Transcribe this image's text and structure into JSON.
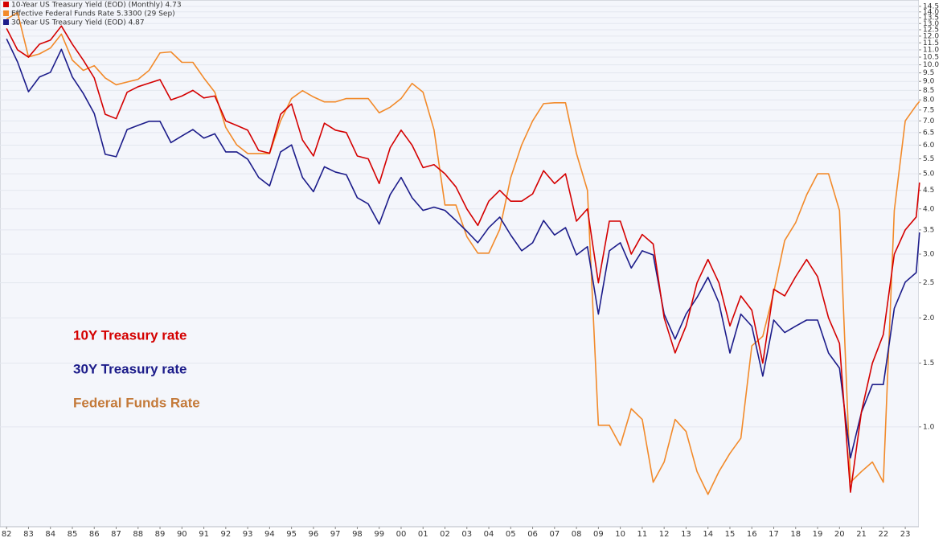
{
  "chart_data": {
    "type": "line",
    "log_scale": true,
    "grid": true,
    "legend": "top-left",
    "annotations": [
      "10Y Treasury rate",
      "30Y Treasury rate",
      "Federal Funds Rate"
    ],
    "x": [
      1982.0,
      1982.5,
      1983.0,
      1983.5,
      1984.0,
      1984.5,
      1985.0,
      1985.5,
      1986.0,
      1986.5,
      1987.0,
      1987.5,
      1988.0,
      1988.5,
      1989.0,
      1989.5,
      1990.0,
      1990.5,
      1991.0,
      1991.5,
      1992.0,
      1992.5,
      1993.0,
      1993.5,
      1994.0,
      1994.5,
      1995.0,
      1995.5,
      1996.0,
      1996.5,
      1997.0,
      1997.5,
      1998.0,
      1998.5,
      1999.0,
      1999.5,
      2000.0,
      2000.5,
      2001.0,
      2001.5,
      2002.0,
      2002.5,
      2003.0,
      2003.5,
      2004.0,
      2004.5,
      2005.0,
      2005.5,
      2006.0,
      2006.5,
      2007.0,
      2007.5,
      2008.0,
      2008.5,
      2009.0,
      2009.5,
      2010.0,
      2010.5,
      2011.0,
      2011.5,
      2012.0,
      2012.5,
      2013.0,
      2013.5,
      2014.0,
      2014.5,
      2015.0,
      2015.5,
      2016.0,
      2016.5,
      2017.0,
      2017.5,
      2018.0,
      2018.5,
      2019.0,
      2019.5,
      2020.0,
      2020.5,
      2021.0,
      2021.5,
      2022.0,
      2022.5,
      2023.0,
      2023.5,
      2023.65
    ],
    "series": [
      {
        "name": "10-Year US Treasury Yield (EOD) (Monthly) 4.73",
        "color": "#d40000",
        "values": [
          12.6,
          11.0,
          10.5,
          11.4,
          11.7,
          12.8,
          11.4,
          10.3,
          9.2,
          7.3,
          7.1,
          8.4,
          8.7,
          8.9,
          9.1,
          8.0,
          8.2,
          8.5,
          8.1,
          8.2,
          7.0,
          6.8,
          6.6,
          5.8,
          5.7,
          7.3,
          7.8,
          6.2,
          5.6,
          6.9,
          6.6,
          6.5,
          5.6,
          5.5,
          4.7,
          5.9,
          6.6,
          6.0,
          5.2,
          5.3,
          5.0,
          4.6,
          4.0,
          3.6,
          4.2,
          4.5,
          4.2,
          4.2,
          4.4,
          5.1,
          4.7,
          5.0,
          3.7,
          4.0,
          2.5,
          3.7,
          3.7,
          3.0,
          3.4,
          3.2,
          2.0,
          1.6,
          1.9,
          2.5,
          2.9,
          2.5,
          1.9,
          2.3,
          2.1,
          1.5,
          2.4,
          2.3,
          2.6,
          2.9,
          2.6,
          2.0,
          1.7,
          0.66,
          1.1,
          1.5,
          1.8,
          3.0,
          3.5,
          3.8,
          4.73
        ]
      },
      {
        "name": "Effective Federal Funds Rate 5.3300 (29 Sep)",
        "color": "#f28a2a",
        "axis": "y2",
        "values": [
          13.2,
          14.2,
          8.7,
          9.0,
          9.6,
          11.2,
          8.4,
          7.5,
          7.9,
          6.9,
          6.4,
          6.6,
          6.8,
          7.5,
          9.1,
          9.2,
          8.2,
          8.2,
          6.9,
          5.9,
          4.0,
          3.3,
          3.0,
          3.0,
          3.0,
          4.3,
          5.5,
          6.0,
          5.6,
          5.3,
          5.3,
          5.5,
          5.5,
          5.5,
          4.7,
          5.0,
          5.5,
          6.5,
          5.9,
          3.9,
          1.7,
          1.7,
          1.2,
          1.0,
          1.0,
          1.3,
          2.3,
          3.3,
          4.3,
          5.2,
          5.25,
          5.25,
          3.0,
          2.0,
          0.15,
          0.15,
          0.12,
          0.18,
          0.16,
          0.08,
          0.1,
          0.16,
          0.14,
          0.09,
          0.07,
          0.09,
          0.11,
          0.13,
          0.36,
          0.4,
          0.65,
          1.15,
          1.4,
          1.9,
          2.4,
          2.4,
          1.6,
          0.08,
          0.09,
          0.1,
          0.08,
          1.6,
          4.3,
          5.1,
          5.33
        ]
      },
      {
        "name": "30-Year US Treasury Yield (EOD) 4.87",
        "color": "#1c1c8a",
        "axis": "y3",
        "values": [
          14.2,
          12.5,
          10.6,
          11.5,
          11.8,
          13.4,
          11.5,
          10.5,
          9.4,
          7.5,
          7.4,
          8.6,
          8.8,
          9.0,
          9.0,
          8.0,
          8.3,
          8.6,
          8.2,
          8.4,
          7.6,
          7.6,
          7.3,
          6.6,
          6.3,
          7.6,
          7.9,
          6.6,
          6.1,
          7.0,
          6.8,
          6.7,
          5.9,
          5.7,
          5.1,
          6.0,
          6.6,
          5.9,
          5.5,
          5.6,
          5.5,
          5.2,
          4.9,
          4.6,
          5.0,
          5.3,
          4.8,
          4.4,
          4.6,
          5.2,
          4.8,
          5.0,
          4.3,
          4.5,
          3.1,
          4.4,
          4.6,
          4.0,
          4.4,
          4.3,
          3.1,
          2.7,
          3.1,
          3.4,
          3.8,
          3.3,
          2.5,
          3.1,
          2.9,
          2.2,
          3.0,
          2.8,
          2.9,
          3.0,
          3.0,
          2.5,
          2.3,
          1.4,
          1.8,
          2.1,
          2.1,
          3.2,
          3.7,
          3.9,
          4.87
        ]
      }
    ],
    "xlim": [
      1981.7,
      2023.62
    ],
    "xticks": [
      {
        "value": 1982,
        "label": "82"
      },
      {
        "value": 1983,
        "label": "83"
      },
      {
        "value": 1984,
        "label": "84"
      },
      {
        "value": 1985,
        "label": "85"
      },
      {
        "value": 1986,
        "label": "86"
      },
      {
        "value": 1987,
        "label": "87"
      },
      {
        "value": 1988,
        "label": "88"
      },
      {
        "value": 1989,
        "label": "89"
      },
      {
        "value": 1990,
        "label": "90"
      },
      {
        "value": 1991,
        "label": "91"
      },
      {
        "value": 1992,
        "label": "92"
      },
      {
        "value": 1993,
        "label": "93"
      },
      {
        "value": 1994,
        "label": "94"
      },
      {
        "value": 1995,
        "label": "95"
      },
      {
        "value": 1996,
        "label": "96"
      },
      {
        "value": 1997,
        "label": "97"
      },
      {
        "value": 1998,
        "label": "98"
      },
      {
        "value": 1999,
        "label": "99"
      },
      {
        "value": 2000,
        "label": "00"
      },
      {
        "value": 2001,
        "label": "01"
      },
      {
        "value": 2002,
        "label": "02"
      },
      {
        "value": 2003,
        "label": "03"
      },
      {
        "value": 2004,
        "label": "04"
      },
      {
        "value": 2005,
        "label": "05"
      },
      {
        "value": 2006,
        "label": "06"
      },
      {
        "value": 2007,
        "label": "07"
      },
      {
        "value": 2008,
        "label": "08"
      },
      {
        "value": 2009,
        "label": "09"
      },
      {
        "value": 2010,
        "label": "10"
      },
      {
        "value": 2011,
        "label": "11"
      },
      {
        "value": 2012,
        "label": "12"
      },
      {
        "value": 2013,
        "label": "13"
      },
      {
        "value": 2014,
        "label": "14"
      },
      {
        "value": 2015,
        "label": "15"
      },
      {
        "value": 2016,
        "label": "16"
      },
      {
        "value": 2017,
        "label": "17"
      },
      {
        "value": 2018,
        "label": "18"
      },
      {
        "value": 2019,
        "label": "19"
      },
      {
        "value": 2020,
        "label": "20"
      },
      {
        "value": 2021,
        "label": "21"
      },
      {
        "value": 2022,
        "label": "22"
      },
      {
        "value": 2023,
        "label": "23"
      }
    ],
    "ylim": [
      0.53,
      15.1
    ],
    "yticks": [
      {
        "value": 1,
        "label": "1.0"
      },
      1.5,
      {
        "value": 2,
        "label": "2.0"
      },
      2.5,
      {
        "value": 3,
        "label": "3.0"
      },
      3.5,
      {
        "value": 4,
        "label": "4.0"
      },
      4.5,
      {
        "value": 5,
        "label": "5.0"
      },
      5.5,
      {
        "value": 6,
        "label": "6.0"
      },
      6.5,
      {
        "value": 7,
        "label": "7.0"
      },
      7.5,
      {
        "value": 8,
        "label": "8.0"
      },
      8.5,
      {
        "value": 9,
        "label": "9.0"
      },
      9.5,
      {
        "value": 10,
        "label": "10.0"
      },
      10.5,
      {
        "value": 11,
        "label": "11.0"
      },
      11.5,
      {
        "value": 12,
        "label": "12.0"
      },
      12.5,
      {
        "value": 13,
        "label": "13.0"
      },
      13.5,
      {
        "value": 14,
        "label": "14.0"
      },
      14.5
    ],
    "y2lim": [
      0.049,
      16.3
    ],
    "y3lim": [
      0.957,
      17.6
    ]
  }
}
